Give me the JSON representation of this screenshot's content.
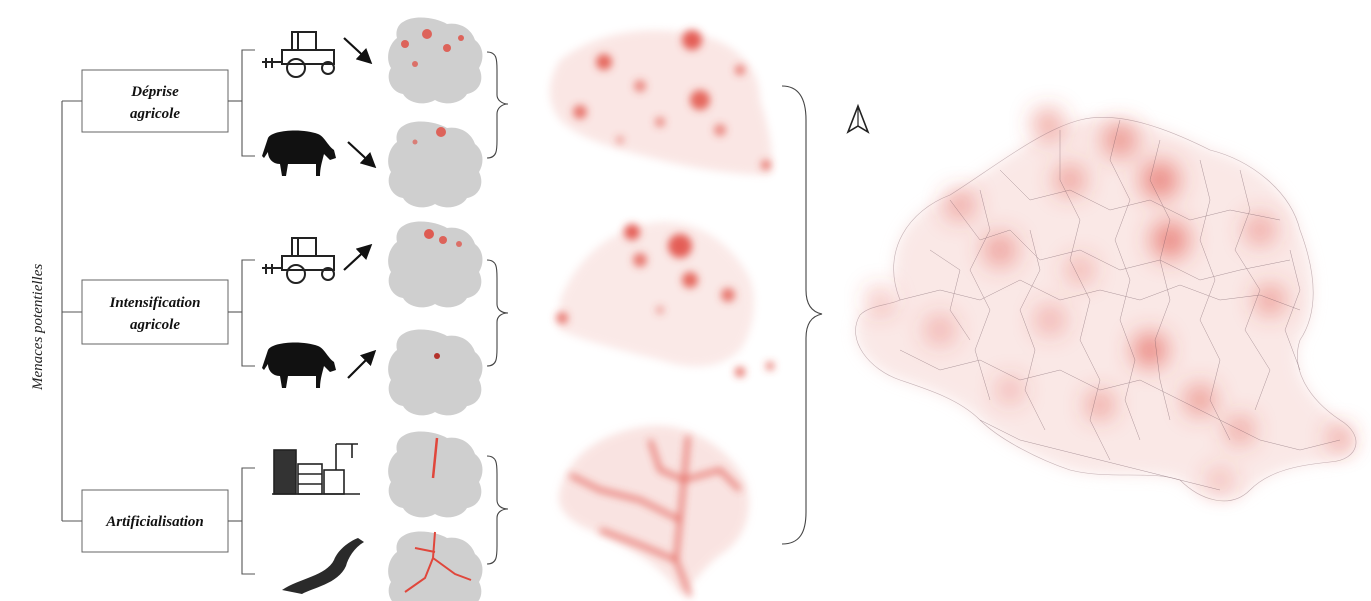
{
  "axis_label": "Menaces potentielles",
  "groups": [
    {
      "label_lines": [
        "Déprise",
        "agricole"
      ],
      "icons": [
        "tractor-icon",
        "cow-icon"
      ],
      "arrows": [
        "down",
        "down"
      ]
    },
    {
      "label_lines": [
        "Intensification",
        "agricole"
      ],
      "icons": [
        "tractor-icon",
        "cow-icon"
      ],
      "arrows": [
        "up",
        "up"
      ]
    },
    {
      "label_lines": [
        "Artificialisation"
      ],
      "icons": [
        "buildings-icon",
        "road-icon"
      ],
      "arrows": []
    }
  ],
  "colors": {
    "heat": "#e0473c",
    "map_grey": "#cfcfcf",
    "ink": "#111111"
  },
  "north_icon": "north-arrow-icon"
}
